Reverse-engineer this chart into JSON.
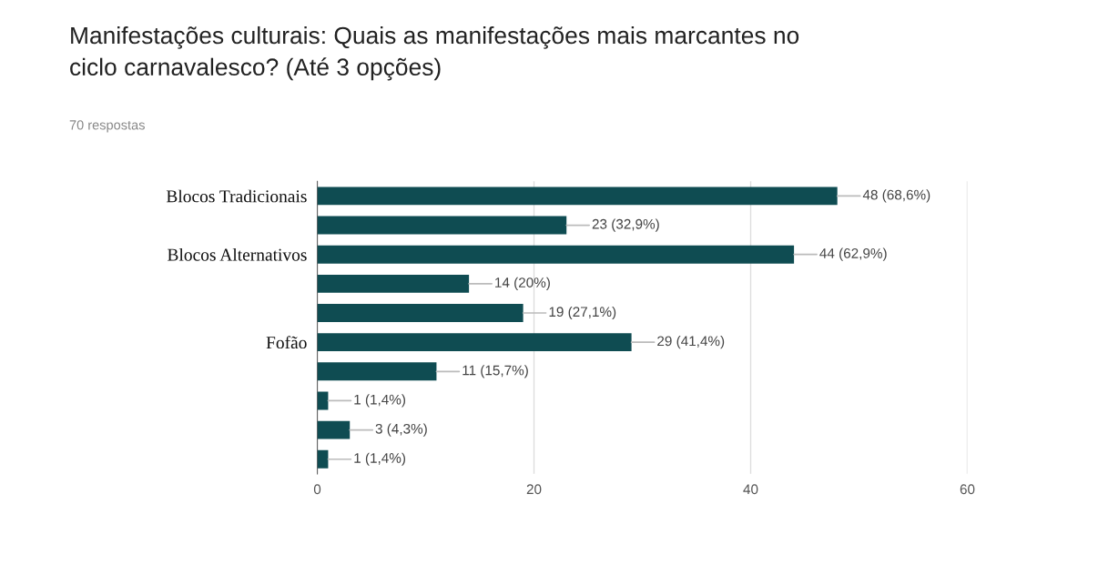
{
  "chart_data": {
    "type": "bar",
    "orientation": "horizontal",
    "title": "Manifestações culturais: Quais as manifestações mais marcantes no\nciclo carnavalesco? (Até 3 opções)",
    "subtitle": "70 respostas",
    "categories": [
      "Blocos Tradicionais",
      null,
      "Blocos Alternativos",
      null,
      null,
      "Fofão",
      null,
      null,
      null,
      null
    ],
    "values": [
      48,
      23,
      44,
      14,
      19,
      29,
      11,
      1,
      3,
      1
    ],
    "value_labels": [
      "48 (68,6%)",
      "23 (32,9%)",
      "44 (62,9%)",
      "14 (20%)",
      "19 (27,1%)",
      "29 (41,4%)",
      "11 (15,7%)",
      "1 (1,4%)",
      "3 (4,3%)",
      "1 (1,4%)"
    ],
    "color": "#0f4c52",
    "xlim": [
      0,
      60
    ],
    "xticks": [
      0,
      20,
      40,
      60
    ],
    "grid": "x",
    "legend": false
  }
}
